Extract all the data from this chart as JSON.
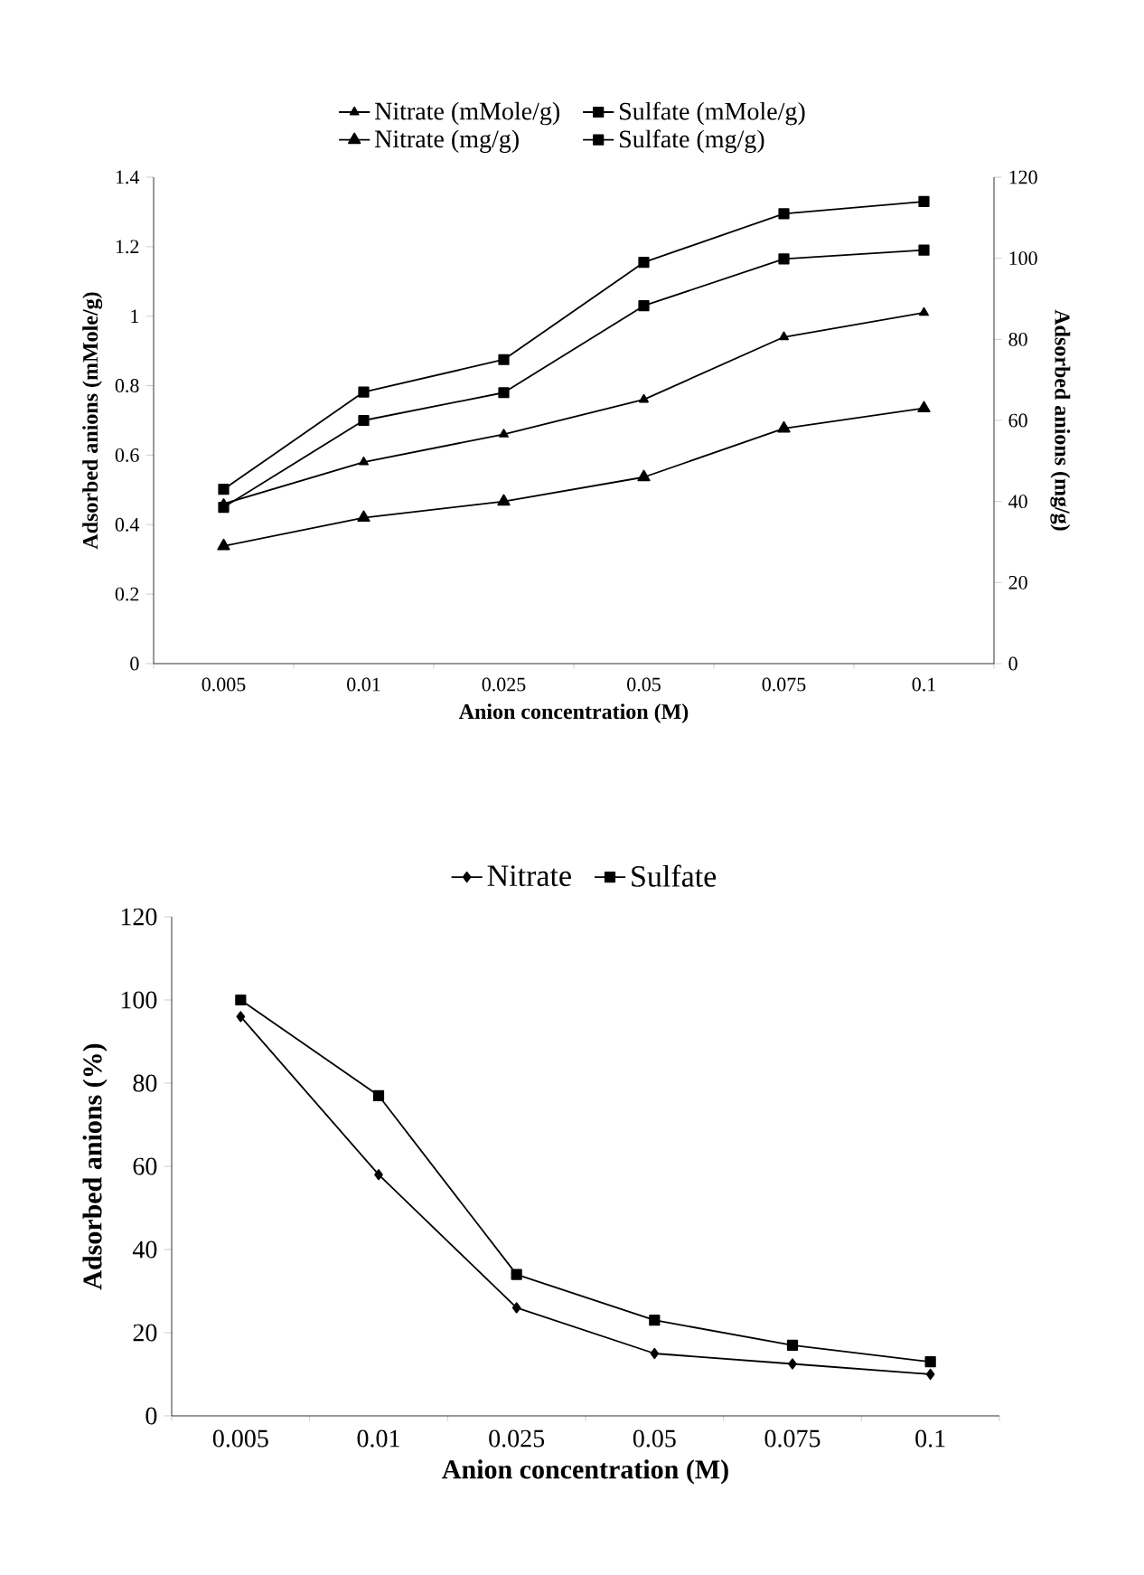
{
  "chart_data": [
    {
      "type": "line",
      "xlabel": "Anion concentration (M)",
      "ylabel": "Adsorbed anions (mMole/g)",
      "y2label": "Adsorbed anions (mg/g)",
      "categories": [
        "0.005",
        "0.01",
        "0.025",
        "0.05",
        "0.075",
        "0.1"
      ],
      "ylim": [
        0,
        1.4
      ],
      "yticks": [
        0,
        0.2,
        0.4,
        0.6,
        0.8,
        1,
        1.2,
        1.4
      ],
      "y2lim": [
        0,
        120
      ],
      "y2ticks": [
        0,
        20,
        40,
        60,
        80,
        100,
        120
      ],
      "legend": "top",
      "grid": false,
      "series": [
        {
          "name": "Nitrate (mMole/g)",
          "color": "#000000",
          "marker": "triangle",
          "values": [
            0.46,
            0.58,
            0.66,
            0.76,
            0.94,
            1.01
          ]
        },
        {
          "name": "Sulfate (mMole/g)",
          "color": "#000000",
          "marker": "square",
          "values": [
            0.45,
            0.7,
            0.78,
            1.03,
            1.165,
            1.19
          ]
        },
        {
          "name": "Nitrate (mg/g)",
          "color": "#000000",
          "marker": "triangle",
          "axis": "y2",
          "values": [
            29,
            36,
            40,
            46,
            58,
            63
          ]
        },
        {
          "name": "Sulfate (mg/g)",
          "color": "#000000",
          "marker": "square",
          "axis": "y2",
          "values": [
            43,
            67,
            75,
            99,
            111,
            114
          ]
        }
      ]
    },
    {
      "type": "line",
      "xlabel": "Anion concentration (M)",
      "ylabel": "Adsorbed anions (%)",
      "categories": [
        "0.005",
        "0.01",
        "0.025",
        "0.05",
        "0.075",
        "0.1"
      ],
      "ylim": [
        0,
        120
      ],
      "yticks": [
        0,
        20,
        40,
        60,
        80,
        100,
        120
      ],
      "legend": "top",
      "grid": false,
      "series": [
        {
          "name": "Nitrate",
          "color": "#000000",
          "marker": "diamond",
          "values": [
            96,
            58,
            26,
            15,
            12.5,
            10
          ]
        },
        {
          "name": "Sulfate",
          "color": "#000000",
          "marker": "square",
          "values": [
            100,
            77,
            34,
            23,
            17,
            13
          ]
        }
      ]
    }
  ]
}
